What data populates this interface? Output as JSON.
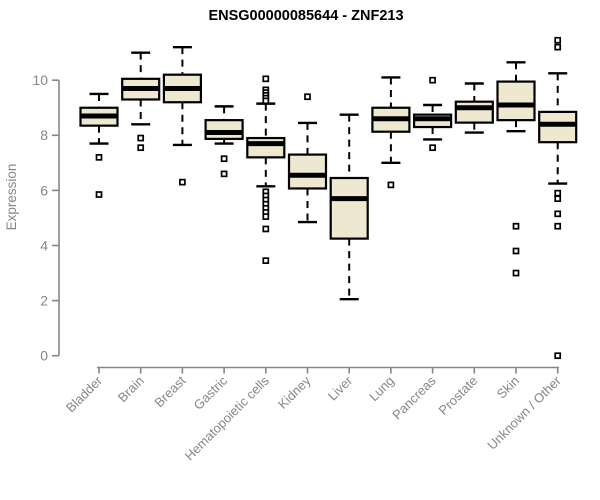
{
  "header": {
    "title": "ENSG00000085644 - ZNF213"
  },
  "chart_data": {
    "type": "boxplot",
    "title": "ENSG00000085644 - ZNF213",
    "ylabel": "Expression",
    "xlabel": "",
    "ylim": [
      0,
      11.5
    ],
    "yticks": [
      0,
      2,
      4,
      6,
      8,
      10
    ],
    "grid": false,
    "legend": "none",
    "colors": {
      "box_fill": "#EDE8CF",
      "box_stroke": "#000000",
      "median": "#000000",
      "whisker": "#000000",
      "axis": "#878787",
      "tick_label": "#878787",
      "title": "#000000",
      "background": "#ffffff"
    },
    "categories": [
      "Bladder",
      "Brain",
      "Breast",
      "Gastric",
      "Hematopoietic cells",
      "Kidney",
      "Liver",
      "Lung",
      "Pancreas",
      "Prostate",
      "Skin",
      "Unknown / Other"
    ],
    "series": [
      {
        "label": "Bladder",
        "whisker_low": 7.7,
        "q1": 8.35,
        "median": 8.7,
        "q3": 9.0,
        "whisker_high": 9.5,
        "outliers": [
          7.2,
          5.85
        ]
      },
      {
        "label": "Brain",
        "whisker_low": 8.4,
        "q1": 9.3,
        "median": 9.7,
        "q3": 10.05,
        "whisker_high": 11.0,
        "outliers": [
          7.9,
          7.55
        ]
      },
      {
        "label": "Breast",
        "whisker_low": 7.65,
        "q1": 9.2,
        "median": 9.7,
        "q3": 10.2,
        "whisker_high": 11.2,
        "outliers": [
          6.3
        ]
      },
      {
        "label": "Gastric",
        "whisker_low": 7.7,
        "q1": 7.87,
        "median": 8.1,
        "q3": 8.55,
        "whisker_high": 9.05,
        "outliers": [
          7.15,
          6.6
        ]
      },
      {
        "label": "Hematopoietic cells",
        "whisker_low": 6.15,
        "q1": 7.2,
        "median": 7.7,
        "q3": 7.9,
        "whisker_high": 9.15,
        "outliers": [
          10.05,
          9.65,
          9.55,
          9.45,
          9.35,
          9.25,
          5.95,
          5.8,
          5.65,
          5.5,
          5.35,
          5.2,
          5.05,
          4.6,
          3.45
        ]
      },
      {
        "label": "Kidney",
        "whisker_low": 4.85,
        "q1": 6.07,
        "median": 6.55,
        "q3": 7.3,
        "whisker_high": 8.45,
        "outliers": [
          9.4
        ]
      },
      {
        "label": "Liver",
        "whisker_low": 2.05,
        "q1": 4.25,
        "median": 5.7,
        "q3": 6.45,
        "whisker_high": 8.75,
        "outliers": []
      },
      {
        "label": "Lung",
        "whisker_low": 7.0,
        "q1": 8.13,
        "median": 8.6,
        "q3": 9.0,
        "whisker_high": 10.1,
        "outliers": [
          6.2
        ]
      },
      {
        "label": "Pancreas",
        "whisker_low": 7.85,
        "q1": 8.3,
        "median": 8.6,
        "q3": 8.75,
        "whisker_high": 9.1,
        "outliers": [
          10.0,
          7.55
        ]
      },
      {
        "label": "Prostate",
        "whisker_low": 8.1,
        "q1": 8.46,
        "median": 9.0,
        "q3": 9.22,
        "whisker_high": 9.88,
        "outliers": []
      },
      {
        "label": "Skin",
        "whisker_low": 8.15,
        "q1": 8.55,
        "median": 9.1,
        "q3": 9.95,
        "whisker_high": 10.65,
        "outliers": [
          4.7,
          3.8,
          3.0
        ]
      },
      {
        "label": "Unknown / Other",
        "whisker_low": 6.25,
        "q1": 7.75,
        "median": 8.4,
        "q3": 8.85,
        "whisker_high": 10.25,
        "outliers": [
          11.45,
          11.2,
          5.9,
          5.7,
          5.15,
          4.7,
          0.0
        ]
      }
    ]
  }
}
